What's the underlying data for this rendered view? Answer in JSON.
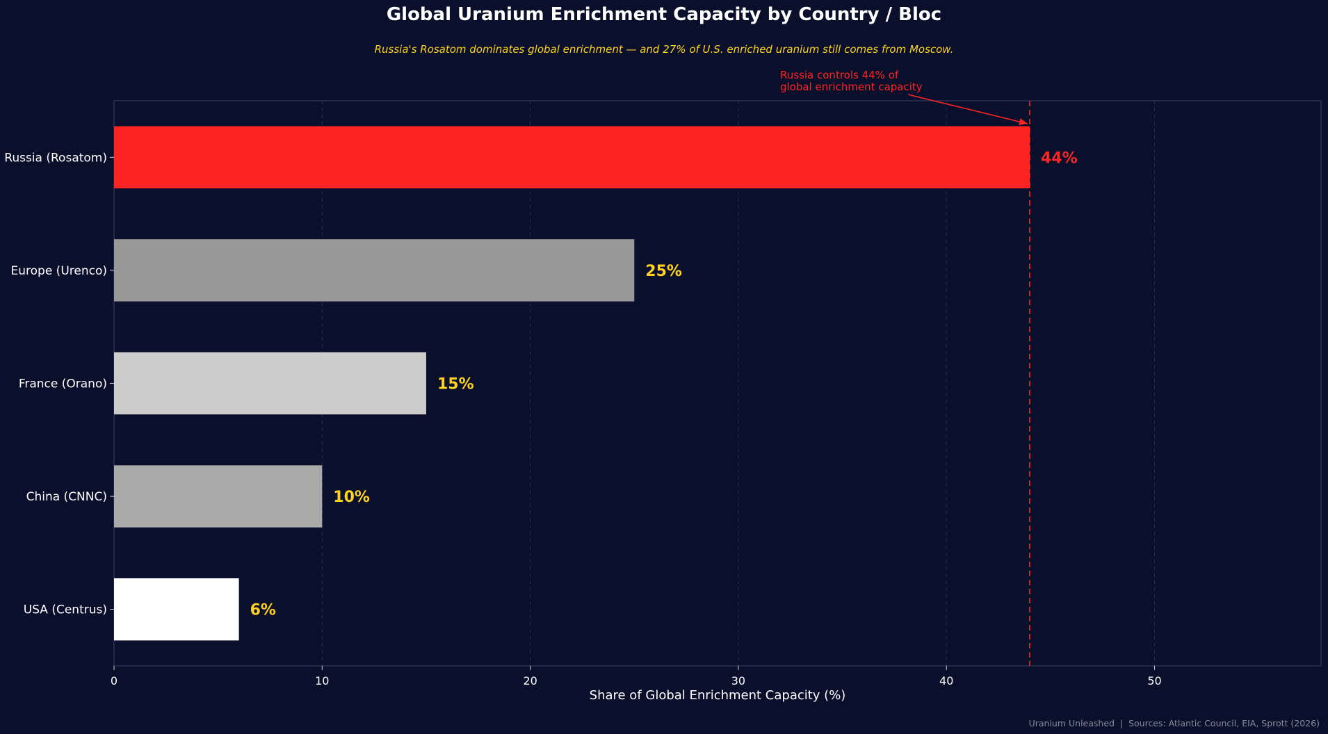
{
  "colors": {
    "background": "#0a0f2c",
    "highlight": "#ff2424",
    "value_label": "#ffd21f",
    "grid": "#2a3050",
    "axis": "#3a4060"
  },
  "chart_data": {
    "type": "bar",
    "orientation": "horizontal",
    "title": "Global Uranium Enrichment Capacity by Country / Bloc",
    "subtitle": "Russia's Rosatom dominates global enrichment — and 27% of U.S. enriched uranium still comes from Moscow.",
    "xlabel": "Share of Global Enrichment Capacity (%)",
    "ylabel": "",
    "xlim": [
      0,
      58
    ],
    "xticks": [
      0,
      10,
      20,
      30,
      40,
      50
    ],
    "grid": "vertical dashed",
    "categories": [
      "Russia (Rosatom)",
      "Europe (Urenco)",
      "France (Orano)",
      "China (CNNC)",
      "USA (Centrus)"
    ],
    "values": [
      44,
      25,
      15,
      10,
      6
    ],
    "value_labels": [
      "44%",
      "25%",
      "15%",
      "10%",
      "6%"
    ],
    "bar_colors": [
      "#ff2424",
      "#999999",
      "#cccccc",
      "#aaaaaa",
      "#ffffff"
    ],
    "reference_line": {
      "x": 44,
      "style": "dashed",
      "color": "#ff2424"
    },
    "annotation": {
      "lines": [
        "Russia controls 44% of",
        "global enrichment capacity"
      ],
      "target_x": 44
    },
    "footer": "Uranium Unleashed  |  Sources: Atlantic Council, EIA, Sprott (2026)"
  }
}
